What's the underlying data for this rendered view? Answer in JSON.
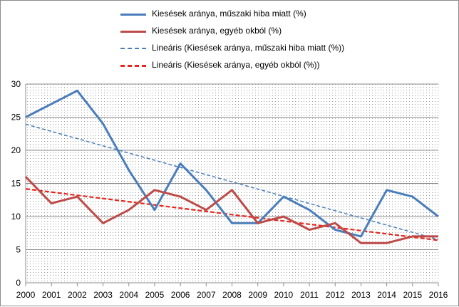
{
  "chart_data": {
    "type": "line",
    "x": [
      "2000",
      "2001",
      "2002",
      "2003",
      "2004",
      "2005",
      "2006",
      "2007",
      "2008",
      "2009",
      "2010",
      "2011",
      "2012",
      "2013",
      "2014",
      "2015",
      "2016"
    ],
    "ylim": [
      0,
      30
    ],
    "yticks": [
      "0",
      "5",
      "10",
      "15",
      "20",
      "25",
      "30"
    ],
    "grid": true,
    "legend_position": "top",
    "series": [
      {
        "name": "Kiesések aránya, műszaki hiba miatt (%)",
        "color": "#4a7ebb",
        "style": "solid",
        "values": [
          25,
          27,
          29,
          24,
          17,
          11,
          18,
          14,
          9,
          9,
          13,
          11,
          8,
          7,
          14,
          13,
          10
        ]
      },
      {
        "name": "Kiesések aránya, egyéb okból (%)",
        "color": "#be4b48",
        "style": "solid",
        "values": [
          16,
          12,
          13,
          9,
          11,
          14,
          13,
          11,
          14,
          9,
          10,
          8,
          9,
          6,
          6,
          7,
          7
        ]
      },
      {
        "name": "Lineáris (Kiesések aránya, műszaki hiba miatt (%))",
        "color": "#4a7ebb",
        "style": "dashed-thin",
        "trend_of": 0
      },
      {
        "name": "Lineáris (Kiesések aránya, egyéb okból (%))",
        "color": "#e8261d",
        "style": "dashed-thick",
        "trend_of": 1
      }
    ]
  }
}
